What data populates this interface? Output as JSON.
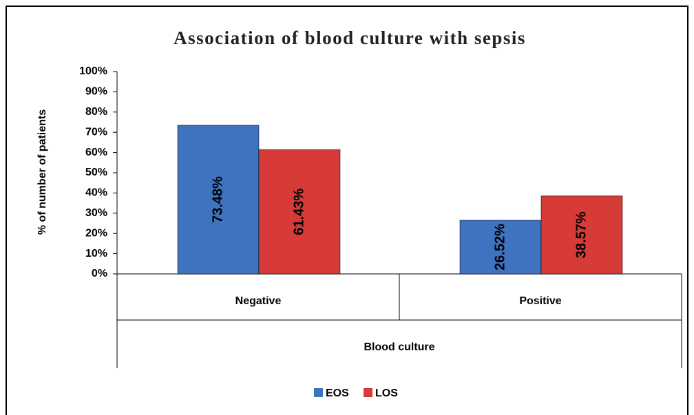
{
  "chart_data": {
    "type": "bar",
    "title": "Association of blood culture with sepsis",
    "x_label": "Blood culture",
    "y_label": "% of number of patients",
    "categories": [
      "Negative",
      "Positive"
    ],
    "series": [
      {
        "name": "EOS",
        "color": "#3f73c0",
        "values": [
          73.48,
          26.52
        ],
        "value_labels": [
          "73.48%",
          "26.52%"
        ]
      },
      {
        "name": "LOS",
        "color": "#d63b38",
        "values": [
          61.43,
          38.57
        ],
        "value_labels": [
          "61.43%",
          "38.57%"
        ]
      }
    ],
    "ylim": [
      0,
      100
    ],
    "yticks": [
      {
        "value": 0,
        "label": "0%"
      },
      {
        "value": 10,
        "label": "10%"
      },
      {
        "value": 20,
        "label": "20%"
      },
      {
        "value": 30,
        "label": "30%"
      },
      {
        "value": 40,
        "label": "40%"
      },
      {
        "value": 50,
        "label": "50%"
      },
      {
        "value": 60,
        "label": "60%"
      },
      {
        "value": 70,
        "label": "70%"
      },
      {
        "value": 80,
        "label": "80%"
      },
      {
        "value": 90,
        "label": "90%"
      },
      {
        "value": 100,
        "label": "100%"
      }
    ],
    "legend": "bottom"
  }
}
